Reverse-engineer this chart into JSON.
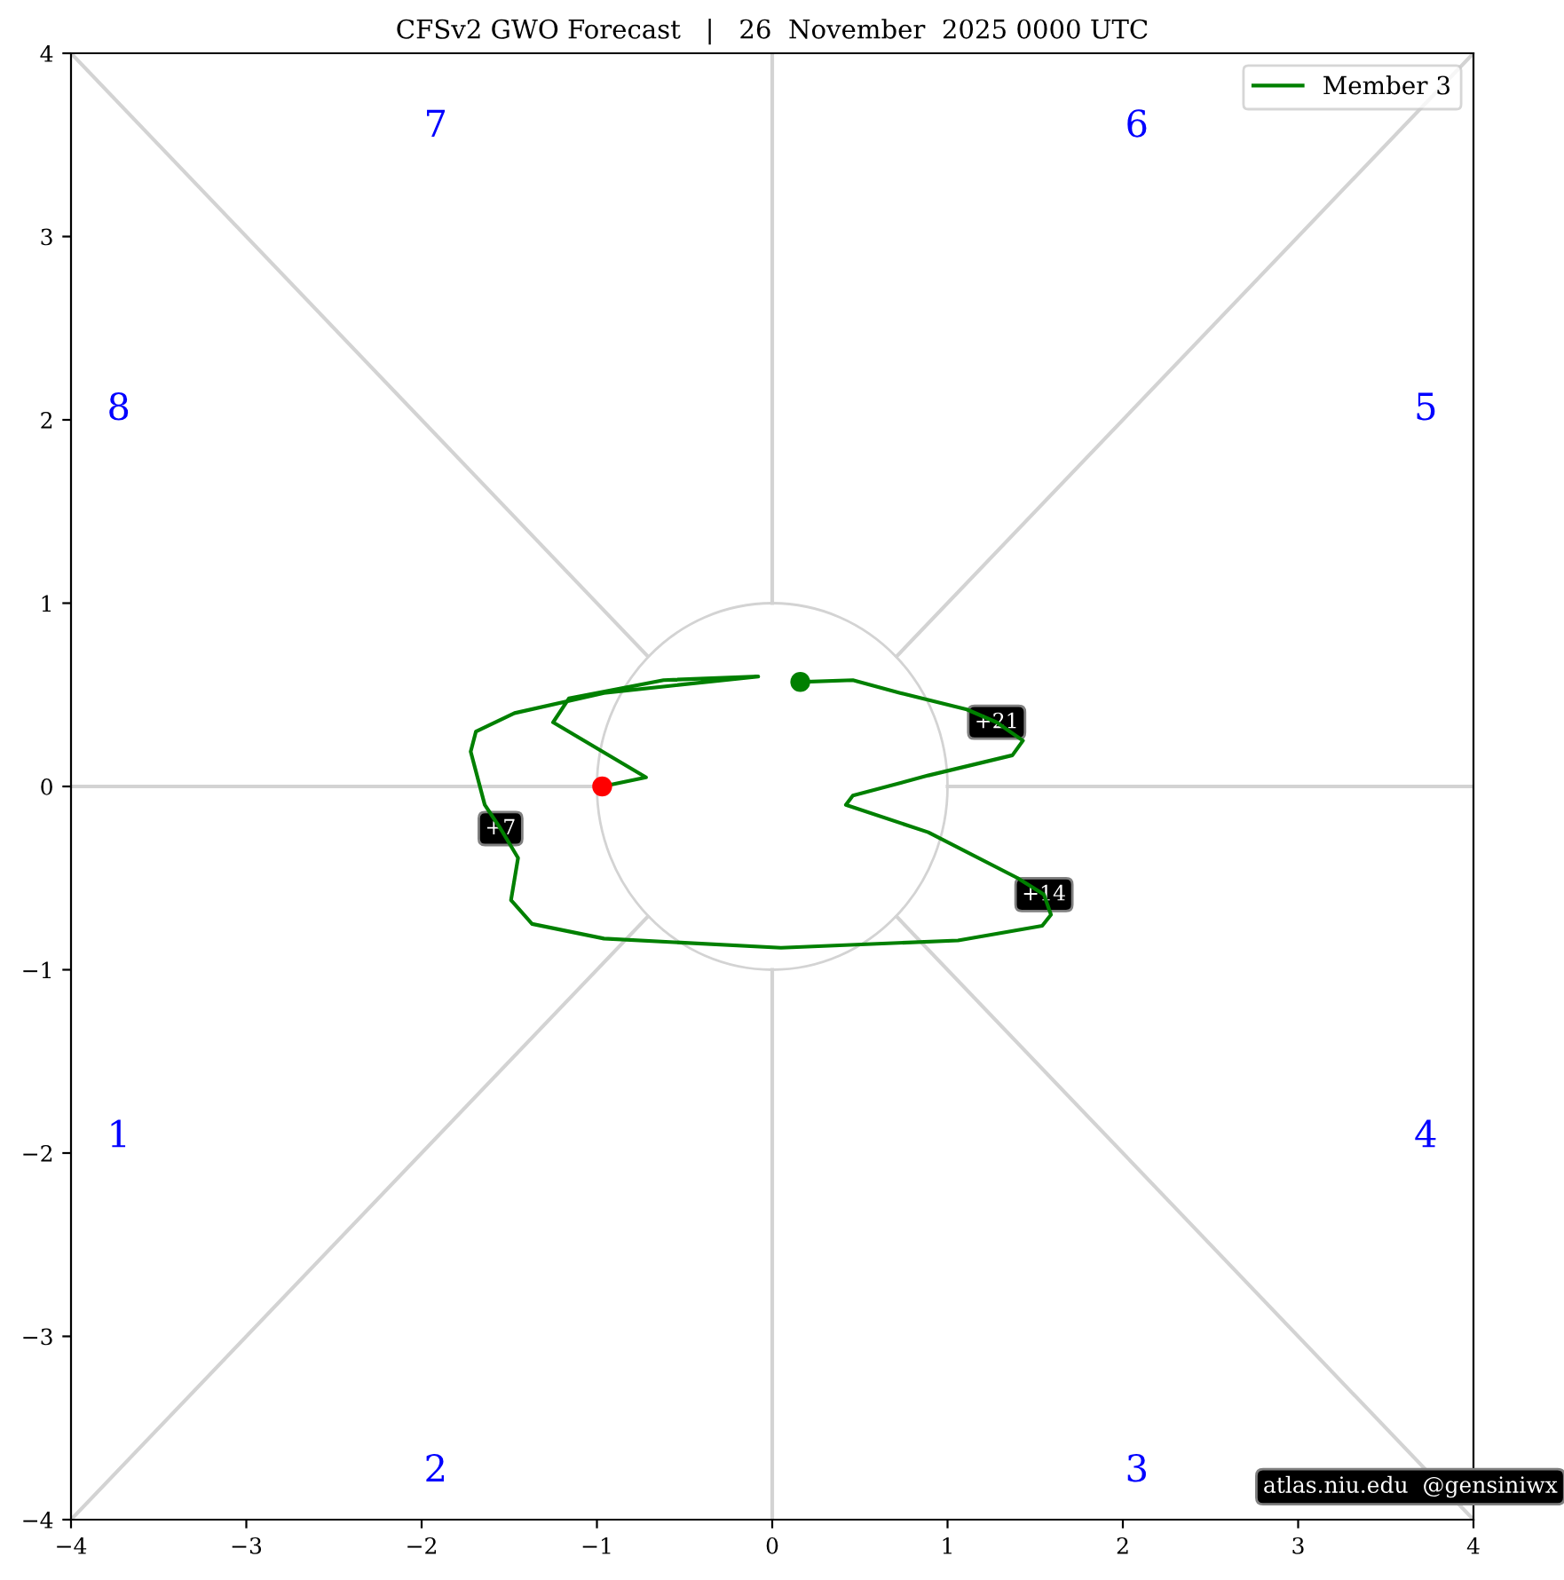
{
  "chart_data": {
    "type": "line",
    "title": "CFSv2 GWO Forecast   |   26  November  2025 0000 UTC",
    "xlim": [
      -4,
      4
    ],
    "ylim": [
      -4,
      4
    ],
    "xticks": [
      {
        "value": -4,
        "label": "−4"
      },
      {
        "value": -3,
        "label": "−3"
      },
      {
        "value": -2,
        "label": "−2"
      },
      {
        "value": -1,
        "label": "−1"
      },
      0,
      1,
      2,
      3,
      4
    ],
    "yticks": [
      {
        "value": -4,
        "label": "−4"
      },
      {
        "value": -3,
        "label": "−3"
      },
      {
        "value": -2,
        "label": "−2"
      },
      {
        "value": -1,
        "label": "−1"
      },
      0,
      1,
      2,
      3,
      4
    ],
    "grid": false,
    "legend": "top right",
    "marker": "none",
    "line_style": "solid",
    "series": [
      {
        "color": "#d3d3d3",
        "x": [
          -4,
          -1
        ],
        "values": [
          0,
          0
        ]
      },
      {
        "color": "#d3d3d3",
        "x": [
          1,
          4
        ],
        "values": [
          0,
          0
        ]
      },
      {
        "color": "#d3d3d3",
        "x": [
          0,
          0
        ],
        "values": [
          1,
          4
        ]
      },
      {
        "color": "#d3d3d3",
        "x": [
          0,
          0
        ],
        "values": [
          -4,
          -1
        ]
      },
      {
        "color": "#d3d3d3",
        "x": [
          -4,
          -0.71
        ],
        "values": [
          4,
          0.71
        ]
      },
      {
        "color": "#d3d3d3",
        "x": [
          0.71,
          4
        ],
        "values": [
          0.71,
          4
        ]
      },
      {
        "color": "#d3d3d3",
        "x": [
          -4,
          -0.71
        ],
        "values": [
          -4,
          -0.71
        ]
      },
      {
        "color": "#d3d3d3",
        "x": [
          0.71,
          4
        ],
        "values": [
          -0.71,
          -4
        ]
      },
      {
        "name": "Member 3",
        "color": "#008000",
        "x": [
          -0.97,
          -0.72,
          -1.25,
          -1.16,
          -0.62,
          -0.08,
          -0.96,
          -1.47,
          -1.69,
          -1.72,
          -1.64,
          -1.55,
          -1.45,
          -1.49,
          -1.37,
          -0.96,
          0.05,
          1.06,
          1.54,
          1.59,
          1.55,
          1.4,
          0.89,
          0.42,
          0.46,
          0.89,
          1.37,
          1.43,
          1.28,
          1.11,
          0.73,
          0.46,
          0.16
        ],
        "values": [
          0,
          0.05,
          0.35,
          0.48,
          0.58,
          0.6,
          0.51,
          0.4,
          0.3,
          0.19,
          -0.1,
          -0.23,
          -0.39,
          -0.62,
          -0.75,
          -0.83,
          -0.88,
          -0.84,
          -0.76,
          -0.7,
          -0.59,
          -0.5,
          -0.25,
          -0.1,
          -0.05,
          0.06,
          0.17,
          0.25,
          0.35,
          0.42,
          0.51,
          0.58,
          0.57
        ]
      },
      {
        "type": "scatter",
        "marker": "circle",
        "color": "#ff0000",
        "x": [
          -0.97
        ],
        "values": [
          0
        ]
      },
      {
        "type": "scatter",
        "marker": "circle",
        "color": "#008000",
        "x": [
          0.16
        ],
        "values": [
          0.57
        ]
      }
    ],
    "annotations": [
      "1",
      "2",
      "3",
      "4",
      "5",
      "6",
      "7",
      "8",
      {
        "text": "+7",
        "x": -1.55,
        "y": -0.23
      },
      {
        "text": "+14",
        "x": 1.55,
        "y": -0.59
      },
      {
        "text": "+21",
        "x": 1.28,
        "y": 0.35
      },
      "atlas.niu.edu  @gensiniwx"
    ]
  }
}
